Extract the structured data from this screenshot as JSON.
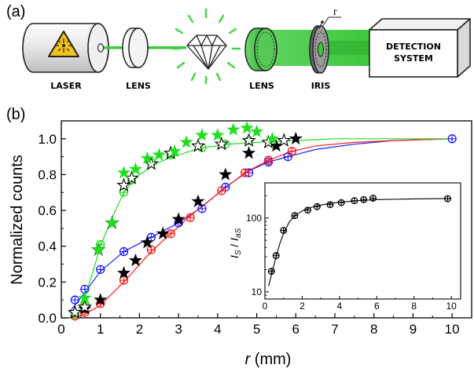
{
  "panel_labels": {
    "a": "(a)",
    "b": "(b)"
  },
  "setup": {
    "laser": "LASER",
    "lens1": "LENS",
    "lens2": "LENS",
    "iris": "IRIS",
    "iris_radius": "r",
    "detection_line1": "DETECTION",
    "detection_line2": "SYSTEM"
  },
  "colors": {
    "blue": "#1e1eff",
    "red": "#ff1a1a",
    "green": "#1fe01f",
    "black": "#000000",
    "beam": "#3cc83c",
    "warning": "#f0c419"
  },
  "chart_data": [
    {
      "type": "scatter",
      "xlabel": "r (mm)",
      "ylabel": "Normalized counts",
      "xlim": [
        0,
        10.5
      ],
      "ylim": [
        0,
        1.1
      ],
      "xticks": [
        "0",
        "1",
        "2",
        "3",
        "4",
        "5",
        "6",
        "7",
        "8",
        "9",
        "10"
      ],
      "yticks": [
        "0.0",
        "0.2",
        "0.4",
        "0.6",
        "0.8",
        "1.0"
      ],
      "series": [
        {
          "marker": "circle-plus",
          "color": "#1e1eff",
          "x": [
            0.35,
            0.6,
            1.0,
            1.6,
            2.3,
            3.0,
            3.6,
            4.2,
            4.8,
            5.3,
            5.8,
            10.0
          ],
          "y": [
            0.1,
            0.16,
            0.27,
            0.37,
            0.45,
            0.53,
            0.61,
            0.73,
            0.81,
            0.87,
            0.9,
            1.0
          ]
        },
        {
          "marker": "circle-plus",
          "color": "#ff1a1a",
          "x": [
            0.35,
            0.6,
            1.0,
            1.6,
            2.3,
            2.8,
            3.3,
            4.1,
            4.7,
            5.3,
            5.9
          ],
          "y": [
            0.01,
            0.03,
            0.08,
            0.21,
            0.38,
            0.47,
            0.56,
            0.71,
            0.81,
            0.88,
            0.93
          ]
        },
        {
          "marker": "circle-plus",
          "color": "#1fe01f",
          "x": [
            0.35,
            0.6,
            1.0,
            1.6,
            1.8,
            2.3,
            2.8,
            3.6,
            4.2,
            4.8
          ],
          "y": [
            0.02,
            0.08,
            0.41,
            0.7,
            0.77,
            0.87,
            0.91,
            0.95,
            0.97,
            0.99
          ]
        },
        {
          "marker": "filled-star",
          "color": "#000000",
          "x": [
            0.35,
            0.6,
            1.0,
            1.6,
            1.9,
            2.2,
            2.6,
            3.0,
            3.5,
            4.2,
            4.8,
            5.5,
            6.0
          ],
          "y": [
            0.03,
            0.05,
            0.1,
            0.25,
            0.32,
            0.42,
            0.47,
            0.55,
            0.65,
            0.8,
            0.92,
            0.96,
            1.0
          ]
        },
        {
          "marker": "open-star",
          "color": "#000000",
          "x": [
            0.35,
            0.6,
            0.95,
            1.3,
            1.6,
            1.8,
            2.3,
            2.8,
            3.5,
            4.1,
            4.8,
            5.3,
            5.7
          ],
          "y": [
            0.03,
            0.06,
            0.38,
            0.53,
            0.74,
            0.78,
            0.86,
            0.92,
            0.96,
            0.97,
            0.99,
            0.98,
            0.99
          ]
        },
        {
          "marker": "filled-star",
          "color": "#1fe01f",
          "x": [
            0.6,
            0.95,
            1.3,
            1.6,
            1.9,
            2.2,
            2.5,
            2.9,
            3.2,
            3.6,
            4.0,
            4.4,
            4.75,
            5.0,
            5.4
          ],
          "y": [
            0.11,
            0.38,
            0.53,
            0.81,
            0.83,
            0.89,
            0.91,
            0.93,
            0.98,
            1.02,
            1.02,
            1.05,
            1.06,
            1.04,
            1.0
          ]
        }
      ],
      "fits": [
        {
          "color": "#1e1eff",
          "x": [
            0.2,
            0.6,
            1.0,
            1.6,
            2.3,
            3.0,
            3.6,
            4.2,
            4.8,
            5.3,
            5.8,
            6.5,
            7.5,
            8.5,
            10.0
          ],
          "y": [
            0.03,
            0.14,
            0.26,
            0.37,
            0.45,
            0.53,
            0.62,
            0.73,
            0.82,
            0.87,
            0.9,
            0.94,
            0.97,
            0.99,
            1.0
          ]
        },
        {
          "color": "#ff1a1a",
          "x": [
            0.2,
            0.6,
            1.0,
            1.6,
            2.3,
            2.8,
            3.3,
            4.1,
            4.7,
            5.3,
            5.9,
            6.5,
            7.5,
            8.5,
            10.0
          ],
          "y": [
            0.0,
            0.02,
            0.07,
            0.2,
            0.37,
            0.47,
            0.57,
            0.71,
            0.81,
            0.88,
            0.93,
            0.96,
            0.98,
            0.99,
            1.0
          ]
        },
        {
          "color": "#1fe01f",
          "x": [
            0.2,
            0.5,
            0.8,
            1.0,
            1.3,
            1.6,
            2.0,
            2.5,
            3.0,
            3.6,
            4.3,
            5.0,
            6.0,
            7.0,
            8.5,
            10.0
          ],
          "y": [
            0.0,
            0.05,
            0.25,
            0.4,
            0.56,
            0.7,
            0.8,
            0.87,
            0.91,
            0.95,
            0.97,
            0.98,
            0.99,
            1.0,
            1.0,
            1.0
          ]
        }
      ]
    },
    {
      "type": "line",
      "inset": true,
      "ylabel": "I_S / I_aS",
      "ylabel_parts": {
        "i1": "I",
        "s1": "S",
        "slash": " / ",
        "i2": "I",
        "s2": "aS"
      },
      "ylog": true,
      "xlim": [
        0,
        10.5
      ],
      "ylim": [
        8,
        300
      ],
      "xticks": [
        "0",
        "2",
        "4",
        "6",
        "8",
        "10"
      ],
      "yticks": [
        "10",
        "100"
      ],
      "x": [
        0.35,
        0.6,
        1.0,
        1.6,
        2.3,
        2.8,
        3.5,
        4.1,
        4.8,
        5.3,
        5.8,
        9.8
      ],
      "y": [
        19,
        31,
        68,
        108,
        128,
        143,
        152,
        162,
        172,
        178,
        186,
        183
      ],
      "fit": {
        "x": [
          0.2,
          0.4,
          0.6,
          0.8,
          1.0,
          1.3,
          1.6,
          2.0,
          2.5,
          3.0,
          3.5,
          4.0,
          5.0,
          6.0,
          8.0,
          10.0
        ],
        "y": [
          12,
          19,
          30,
          45,
          62,
          88,
          108,
          125,
          140,
          150,
          158,
          164,
          172,
          178,
          182,
          184
        ]
      }
    }
  ]
}
